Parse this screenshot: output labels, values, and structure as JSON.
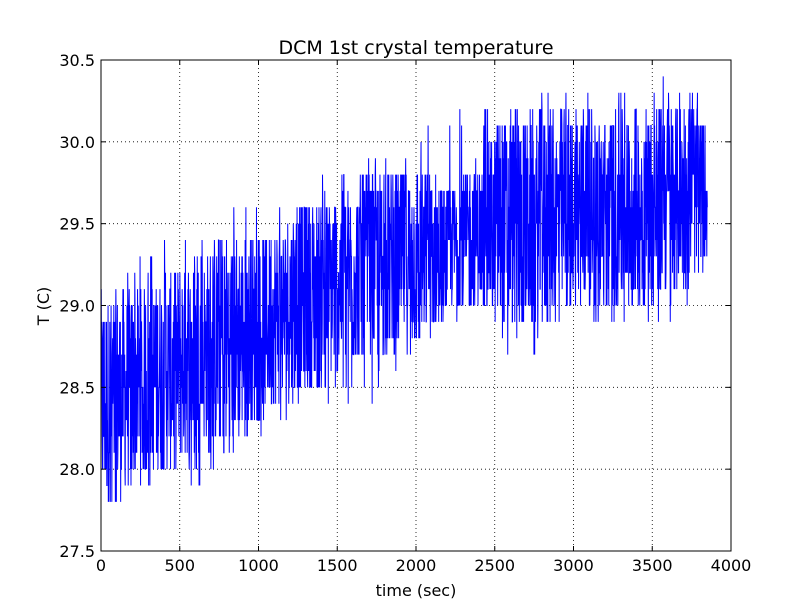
{
  "chart_data": {
    "type": "line",
    "title": "DCM 1st crystal temperature",
    "xlabel": "time (sec)",
    "ylabel": "T (C)",
    "xlim": [
      0,
      4000
    ],
    "ylim": [
      27.5,
      30.5
    ],
    "xticks": [
      0,
      500,
      1000,
      1500,
      2000,
      2500,
      3000,
      3500,
      4000
    ],
    "xtick_labels": [
      "0",
      "500",
      "1000",
      "1500",
      "2000",
      "2500",
      "3000",
      "3500",
      "4000"
    ],
    "yticks": [
      27.5,
      28.0,
      28.5,
      29.0,
      29.5,
      30.0,
      30.5
    ],
    "ytick_labels": [
      "27.5",
      "28.0",
      "28.5",
      "29.0",
      "29.5",
      "30.0",
      "30.5"
    ],
    "grid": true,
    "grid_style": "dotted",
    "line_color": "#0000ff",
    "x": [
      0,
      200,
      400,
      600,
      800,
      1000,
      1200,
      1400,
      1600,
      1800,
      2000,
      2200,
      2400,
      2600,
      2800,
      3000,
      3200,
      3400,
      3600,
      3850
    ],
    "y_center": [
      28.4,
      28.5,
      28.6,
      28.7,
      28.8,
      28.85,
      29.0,
      29.1,
      29.2,
      29.25,
      29.3,
      29.35,
      29.45,
      29.5,
      29.5,
      29.6,
      29.6,
      29.6,
      29.65,
      29.7
    ],
    "y_min": [
      27.6,
      27.8,
      27.9,
      27.9,
      28.0,
      28.2,
      28.3,
      28.4,
      28.4,
      28.4,
      28.6,
      28.9,
      28.9,
      28.6,
      28.7,
      28.9,
      28.9,
      28.9,
      28.9,
      29.2
    ],
    "y_max": [
      29.2,
      29.3,
      29.4,
      29.4,
      29.6,
      29.6,
      29.7,
      29.8,
      29.9,
      29.9,
      30.0,
      30.2,
      30.2,
      30.3,
      30.3,
      30.3,
      30.3,
      30.4,
      30.4,
      30.3
    ]
  }
}
